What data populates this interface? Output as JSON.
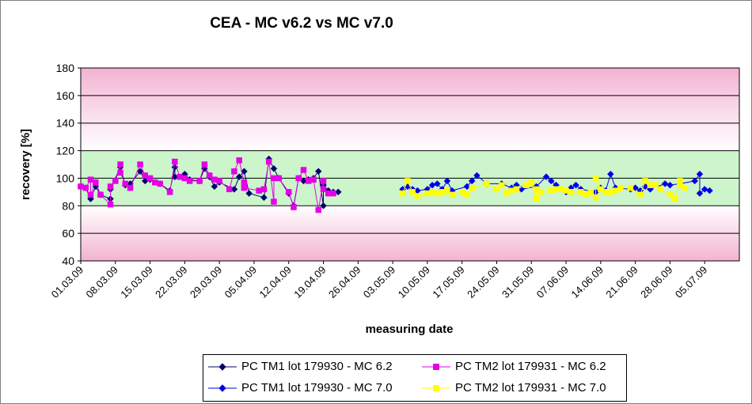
{
  "chart_data": {
    "type": "scatter",
    "title": "CEA -  MC v6.2 vs MC v7.0",
    "xlabel": "measuring date",
    "ylabel": "recovery [%]",
    "ylim": [
      40,
      180
    ],
    "yticks": [
      40,
      60,
      80,
      100,
      120,
      140,
      160,
      180
    ],
    "xlim": [
      "01.03.09",
      "12.07.09"
    ],
    "xticks": [
      "01.03.09",
      "08.03.09",
      "15.03.09",
      "22.03.09",
      "29.03.09",
      "05.04.09",
      "12.04.09",
      "19.04.09",
      "26.04.09",
      "03.05.09",
      "10.05.09",
      "17.05.09",
      "24.05.09",
      "31.05.09",
      "07.06.09",
      "14.06.09",
      "21.06.09",
      "28.06.09",
      "05.07.09"
    ],
    "grid": "horizontal",
    "legend_position": "bottom",
    "background_bands": [
      {
        "from": 40,
        "to": 80,
        "color": "#f2b3d2"
      },
      {
        "from": 80,
        "to": 120,
        "color": "#ccf5cc"
      },
      {
        "from": 120,
        "to": 180,
        "color": "#f2b3d2"
      }
    ],
    "series": [
      {
        "name": "PC TM1 lot 179930 - MC 6.2",
        "color": "#00006e",
        "marker": "diamond",
        "points": [
          [
            "01.03.09",
            94
          ],
          [
            "02.03.09",
            93
          ],
          [
            "03.03.09",
            85
          ],
          [
            "04.03.09",
            94
          ],
          [
            "05.03.09",
            88
          ],
          [
            "07.03.09",
            85
          ],
          [
            "07.03.09",
            92
          ],
          [
            "09.03.09",
            108
          ],
          [
            "10.03.09",
            95
          ],
          [
            "11.03.09",
            96
          ],
          [
            "13.03.09",
            105
          ],
          [
            "14.03.09",
            98
          ],
          [
            "15.03.09",
            99
          ],
          [
            "17.03.09",
            96
          ],
          [
            "19.03.09",
            91
          ],
          [
            "20.03.09",
            108
          ],
          [
            "20.03.09",
            101
          ],
          [
            "22.03.09",
            103
          ],
          [
            "23.03.09",
            99
          ],
          [
            "25.03.09",
            98
          ],
          [
            "26.03.09",
            107
          ],
          [
            "27.03.09",
            101
          ],
          [
            "28.03.09",
            94
          ],
          [
            "29.03.09",
            97
          ],
          [
            "01.04.09",
            92
          ],
          [
            "02.04.09",
            101
          ],
          [
            "03.04.09",
            105
          ],
          [
            "04.04.09",
            89
          ],
          [
            "07.04.09",
            86
          ],
          [
            "08.04.09",
            114
          ],
          [
            "09.04.09",
            107
          ],
          [
            "10.04.09",
            100
          ],
          [
            "12.04.09",
            89
          ],
          [
            "13.04.09",
            80
          ],
          [
            "14.04.09",
            100
          ],
          [
            "15.04.09",
            98
          ],
          [
            "16.04.09",
            99
          ],
          [
            "17.04.09",
            100
          ],
          [
            "18.04.09",
            105
          ],
          [
            "19.04.09",
            80
          ],
          [
            "19.04.09",
            95
          ],
          [
            "20.04.09",
            91
          ],
          [
            "21.04.09",
            90
          ],
          [
            "22.04.09",
            90
          ]
        ]
      },
      {
        "name": "PC TM2 lot 179931 - MC 6.2",
        "color": "#e600e6",
        "marker": "square",
        "points": [
          [
            "01.03.09",
            94
          ],
          [
            "02.03.09",
            93
          ],
          [
            "03.03.09",
            99
          ],
          [
            "03.03.09",
            88
          ],
          [
            "04.03.09",
            97
          ],
          [
            "05.03.09",
            88
          ],
          [
            "07.03.09",
            81
          ],
          [
            "07.03.09",
            94
          ],
          [
            "08.03.09",
            98
          ],
          [
            "09.03.09",
            110
          ],
          [
            "09.03.09",
            104
          ],
          [
            "10.03.09",
            96
          ],
          [
            "11.03.09",
            93
          ],
          [
            "13.03.09",
            110
          ],
          [
            "14.03.09",
            102
          ],
          [
            "15.03.09",
            100
          ],
          [
            "16.03.09",
            97
          ],
          [
            "17.03.09",
            96
          ],
          [
            "19.03.09",
            90
          ],
          [
            "20.03.09",
            112
          ],
          [
            "21.03.09",
            101
          ],
          [
            "22.03.09",
            100
          ],
          [
            "23.03.09",
            98
          ],
          [
            "25.03.09",
            98
          ],
          [
            "26.03.09",
            110
          ],
          [
            "27.03.09",
            102
          ],
          [
            "28.03.09",
            99
          ],
          [
            "29.03.09",
            98
          ],
          [
            "31.03.09",
            92
          ],
          [
            "01.04.09",
            105
          ],
          [
            "02.04.09",
            113
          ],
          [
            "03.04.09",
            97
          ],
          [
            "03.04.09",
            93
          ],
          [
            "06.04.09",
            91
          ],
          [
            "07.04.09",
            92
          ],
          [
            "08.04.09",
            112
          ],
          [
            "09.04.09",
            83
          ],
          [
            "09.04.09",
            100
          ],
          [
            "10.04.09",
            100
          ],
          [
            "12.04.09",
            90
          ],
          [
            "13.04.09",
            79
          ],
          [
            "14.04.09",
            100
          ],
          [
            "15.04.09",
            106
          ],
          [
            "16.04.09",
            98
          ],
          [
            "17.04.09",
            99
          ],
          [
            "18.04.09",
            77
          ],
          [
            "19.04.09",
            98
          ],
          [
            "19.04.09",
            92
          ],
          [
            "20.04.09",
            89
          ],
          [
            "21.04.09",
            89
          ]
        ]
      },
      {
        "name": "PC TM1 lot 179930 - MC 7.0",
        "color": "#0000e6",
        "marker": "diamond",
        "points": [
          [
            "05.05.09",
            92
          ],
          [
            "06.05.09",
            94
          ],
          [
            "07.05.09",
            92
          ],
          [
            "08.05.09",
            91
          ],
          [
            "10.05.09",
            92
          ],
          [
            "11.05.09",
            95
          ],
          [
            "12.05.09",
            96
          ],
          [
            "13.05.09",
            92
          ],
          [
            "14.05.09",
            98
          ],
          [
            "15.05.09",
            91
          ],
          [
            "18.05.09",
            94
          ],
          [
            "19.05.09",
            98
          ],
          [
            "20.05.09",
            102
          ],
          [
            "22.05.09",
            96
          ],
          [
            "25.05.09",
            96
          ],
          [
            "27.05.09",
            93
          ],
          [
            "28.05.09",
            95
          ],
          [
            "29.05.09",
            92
          ],
          [
            "01.06.09",
            94
          ],
          [
            "03.06.09",
            101
          ],
          [
            "04.06.09",
            98
          ],
          [
            "05.06.09",
            95
          ],
          [
            "07.06.09",
            90
          ],
          [
            "08.06.09",
            93
          ],
          [
            "09.06.09",
            95
          ],
          [
            "10.06.09",
            92
          ],
          [
            "13.06.09",
            90
          ],
          [
            "14.06.09",
            93
          ],
          [
            "15.06.09",
            91
          ],
          [
            "16.06.09",
            103
          ],
          [
            "17.06.09",
            93
          ],
          [
            "20.06.09",
            92
          ],
          [
            "21.06.09",
            93
          ],
          [
            "22.06.09",
            91
          ],
          [
            "23.06.09",
            94
          ],
          [
            "24.06.09",
            92
          ],
          [
            "27.06.09",
            96
          ],
          [
            "28.06.09",
            95
          ],
          [
            "30.06.09",
            96
          ],
          [
            "03.07.09",
            98
          ],
          [
            "04.07.09",
            103
          ],
          [
            "04.07.09",
            89
          ],
          [
            "05.07.09",
            92
          ],
          [
            "06.07.09",
            91
          ]
        ]
      },
      {
        "name": "PC TM2 lot 179931 - MC 7.0",
        "color": "#ffff00",
        "marker": "square",
        "points": [
          [
            "05.05.09",
            89
          ],
          [
            "06.05.09",
            98
          ],
          [
            "07.05.09",
            90
          ],
          [
            "08.05.09",
            87
          ],
          [
            "10.05.09",
            89
          ],
          [
            "11.05.09",
            90
          ],
          [
            "12.05.09",
            89
          ],
          [
            "13.05.09",
            90
          ],
          [
            "14.05.09",
            91
          ],
          [
            "15.05.09",
            88
          ],
          [
            "17.05.09",
            90
          ],
          [
            "18.05.09",
            88
          ],
          [
            "19.05.09",
            93
          ],
          [
            "22.05.09",
            96
          ],
          [
            "24.05.09",
            92
          ],
          [
            "25.05.09",
            95
          ],
          [
            "26.05.09",
            89
          ],
          [
            "27.05.09",
            91
          ],
          [
            "28.05.09",
            92
          ],
          [
            "30.05.09",
            95
          ],
          [
            "31.05.09",
            97
          ],
          [
            "01.06.09",
            85
          ],
          [
            "01.06.09",
            92
          ],
          [
            "02.06.09",
            90
          ],
          [
            "04.06.09",
            91
          ],
          [
            "05.06.09",
            92
          ],
          [
            "06.06.09",
            92
          ],
          [
            "07.06.09",
            91
          ],
          [
            "08.06.09",
            90
          ],
          [
            "10.06.09",
            90
          ],
          [
            "11.06.09",
            88
          ],
          [
            "12.06.09",
            90
          ],
          [
            "13.06.09",
            86
          ],
          [
            "13.06.09",
            100
          ],
          [
            "14.06.09",
            92
          ],
          [
            "15.06.09",
            90
          ],
          [
            "16.06.09",
            90
          ],
          [
            "17.06.09",
            91
          ],
          [
            "18.06.09",
            93
          ],
          [
            "20.06.09",
            93
          ],
          [
            "22.06.09",
            88
          ],
          [
            "23.06.09",
            98
          ],
          [
            "24.06.09",
            95
          ],
          [
            "25.06.09",
            95
          ],
          [
            "26.06.09",
            92
          ],
          [
            "28.06.09",
            88
          ],
          [
            "29.06.09",
            85
          ],
          [
            "30.06.09",
            98
          ],
          [
            "30.06.09",
            95
          ],
          [
            "01.07.09",
            93
          ]
        ]
      }
    ]
  }
}
